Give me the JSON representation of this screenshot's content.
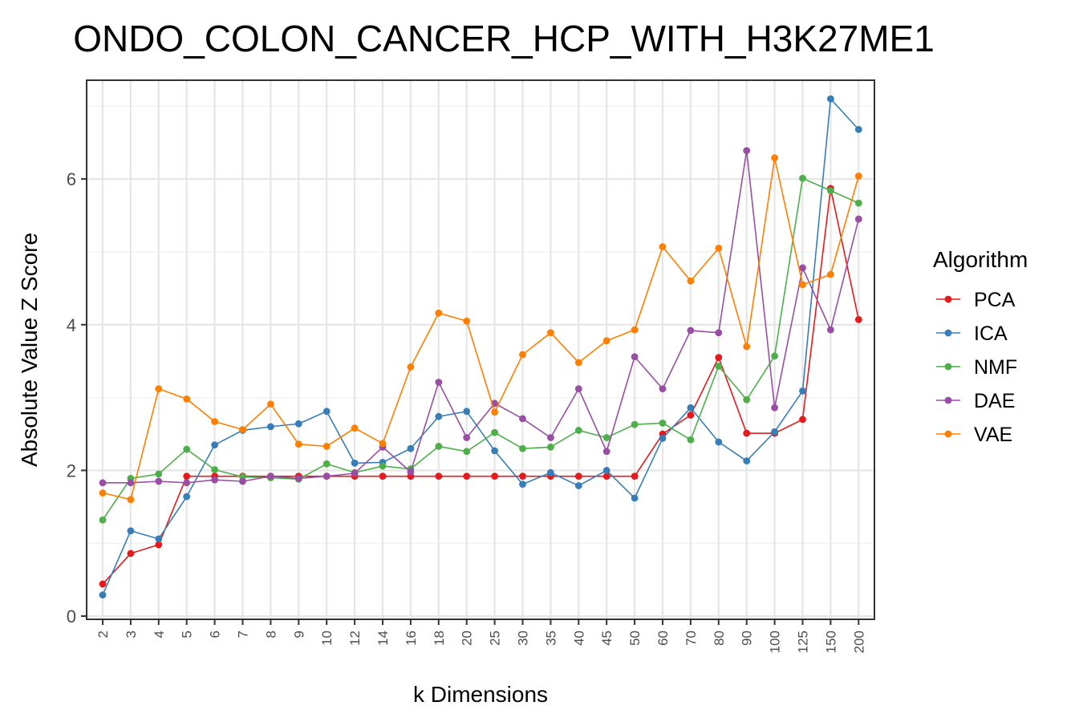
{
  "chart_data": {
    "type": "line",
    "title": "ONDO_COLON_CANCER_HCP_WITH_H3K27ME1",
    "xlabel": "k Dimensions",
    "ylabel": "Absolute Value Z Score",
    "categories": [
      "2",
      "3",
      "4",
      "5",
      "6",
      "7",
      "8",
      "9",
      "10",
      "12",
      "14",
      "16",
      "18",
      "20",
      "25",
      "30",
      "35",
      "40",
      "45",
      "50",
      "60",
      "70",
      "80",
      "90",
      "100",
      "125",
      "150",
      "200"
    ],
    "ylim": [
      0,
      7.4
    ],
    "yticks": [
      0,
      2,
      4,
      6
    ],
    "grid": true,
    "legend": {
      "title": "Algorithm",
      "position": "right"
    },
    "series": [
      {
        "name": "PCA",
        "color": "#e41a1c",
        "values": [
          0.44,
          0.86,
          0.98,
          1.92,
          1.92,
          1.92,
          1.92,
          1.92,
          1.92,
          1.92,
          1.92,
          1.92,
          1.92,
          1.92,
          1.92,
          1.92,
          1.92,
          1.92,
          1.92,
          1.92,
          2.5,
          2.76,
          3.55,
          2.51,
          2.51,
          2.7,
          5.87,
          4.07
        ]
      },
      {
        "name": "ICA",
        "color": "#377eb8",
        "values": [
          0.29,
          1.17,
          1.06,
          1.64,
          2.35,
          2.55,
          2.6,
          2.64,
          2.81,
          2.1,
          2.11,
          2.3,
          2.74,
          2.81,
          2.27,
          1.81,
          1.97,
          1.79,
          2.0,
          1.62,
          2.44,
          2.86,
          2.39,
          2.13,
          2.53,
          3.09,
          7.1,
          6.68
        ]
      },
      {
        "name": "NMF",
        "color": "#4daf4a",
        "values": [
          1.32,
          1.89,
          1.95,
          2.29,
          2.01,
          1.91,
          1.9,
          1.88,
          2.09,
          1.97,
          2.06,
          2.02,
          2.33,
          2.26,
          2.52,
          2.3,
          2.32,
          2.55,
          2.45,
          2.63,
          2.65,
          2.42,
          3.43,
          2.97,
          3.57,
          6.01,
          5.84,
          5.67
        ]
      },
      {
        "name": "DAE",
        "color": "#984ea3",
        "values": [
          1.83,
          1.83,
          1.85,
          1.83,
          1.87,
          1.85,
          1.92,
          1.89,
          1.92,
          1.96,
          2.32,
          1.98,
          3.21,
          2.45,
          2.92,
          2.71,
          2.45,
          3.12,
          2.26,
          3.56,
          3.12,
          3.92,
          3.89,
          6.39,
          2.86,
          4.78,
          3.93,
          5.45
        ]
      },
      {
        "name": "VAE",
        "color": "#ff7f00",
        "values": [
          1.69,
          1.6,
          3.12,
          2.98,
          2.67,
          2.56,
          2.91,
          2.36,
          2.33,
          2.58,
          2.37,
          3.42,
          4.16,
          4.05,
          2.8,
          3.59,
          3.89,
          3.48,
          3.78,
          3.93,
          5.07,
          4.6,
          5.05,
          3.7,
          6.29,
          4.55,
          4.69,
          6.04
        ]
      }
    ]
  }
}
